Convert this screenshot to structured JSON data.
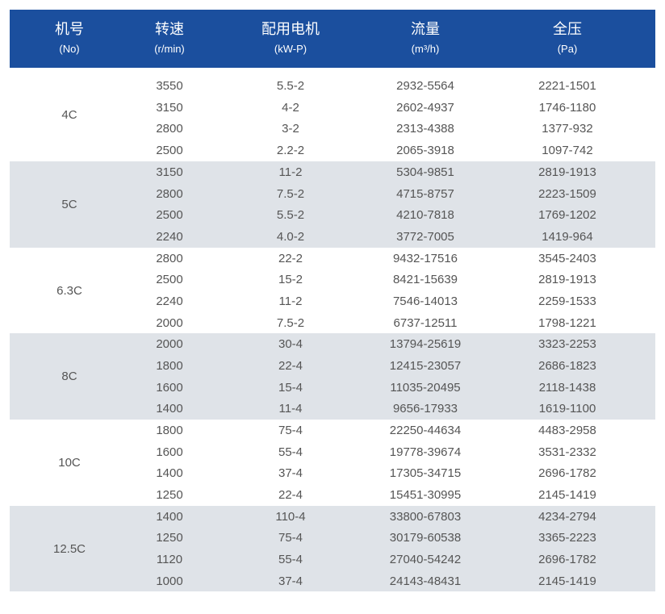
{
  "header": {
    "columns": [
      {
        "zh": "机号",
        "en": "(No)"
      },
      {
        "zh": "转速",
        "en": "(r/min)"
      },
      {
        "zh": "配用电机",
        "en": "(kW-P)"
      },
      {
        "zh": "流量",
        "en": "(m³/h)"
      },
      {
        "zh": "全压",
        "en": "(Pa)"
      }
    ]
  },
  "colors": {
    "header_bg": "#1b4f9e",
    "alt_row_bg": "#dfe3e8"
  },
  "groups": [
    {
      "machine": "4C",
      "rows": [
        [
          "3550",
          "5.5-2",
          "2932-5564",
          "2221-1501"
        ],
        [
          "3150",
          "4-2",
          "2602-4937",
          "1746-1180"
        ],
        [
          "2800",
          "3-2",
          "2313-4388",
          "1377-932"
        ],
        [
          "2500",
          "2.2-2",
          "2065-3918",
          "1097-742"
        ]
      ]
    },
    {
      "machine": "5C",
      "rows": [
        [
          "3150",
          "11-2",
          "5304-9851",
          "2819-1913"
        ],
        [
          "2800",
          "7.5-2",
          "4715-8757",
          "2223-1509"
        ],
        [
          "2500",
          "5.5-2",
          "4210-7818",
          "1769-1202"
        ],
        [
          "2240",
          "4.0-2",
          "3772-7005",
          "1419-964"
        ]
      ]
    },
    {
      "machine": "6.3C",
      "rows": [
        [
          "2800",
          "22-2",
          "9432-17516",
          "3545-2403"
        ],
        [
          "2500",
          "15-2",
          "8421-15639",
          "2819-1913"
        ],
        [
          "2240",
          "11-2",
          "7546-14013",
          "2259-1533"
        ],
        [
          "2000",
          "7.5-2",
          "6737-12511",
          "1798-1221"
        ]
      ]
    },
    {
      "machine": "8C",
      "rows": [
        [
          "2000",
          "30-4",
          "13794-25619",
          "3323-2253"
        ],
        [
          "1800",
          "22-4",
          "12415-23057",
          "2686-1823"
        ],
        [
          "1600",
          "15-4",
          "11035-20495",
          "2118-1438"
        ],
        [
          "1400",
          "11-4",
          "9656-17933",
          "1619-1100"
        ]
      ]
    },
    {
      "machine": "10C",
      "rows": [
        [
          "1800",
          "75-4",
          "22250-44634",
          "4483-2958"
        ],
        [
          "1600",
          "55-4",
          "19778-39674",
          "3531-2332"
        ],
        [
          "1400",
          "37-4",
          "17305-34715",
          "2696-1782"
        ],
        [
          "1250",
          "22-4",
          "15451-30995",
          "2145-1419"
        ]
      ]
    },
    {
      "machine": "12.5C",
      "rows": [
        [
          "1400",
          "110-4",
          "33800-67803",
          "4234-2794"
        ],
        [
          "1250",
          "75-4",
          "30179-60538",
          "3365-2223"
        ],
        [
          "1120",
          "55-4",
          "27040-54242",
          "2696-1782"
        ],
        [
          "1000",
          "37-4",
          "24143-48431",
          "2145-1419"
        ]
      ]
    }
  ]
}
